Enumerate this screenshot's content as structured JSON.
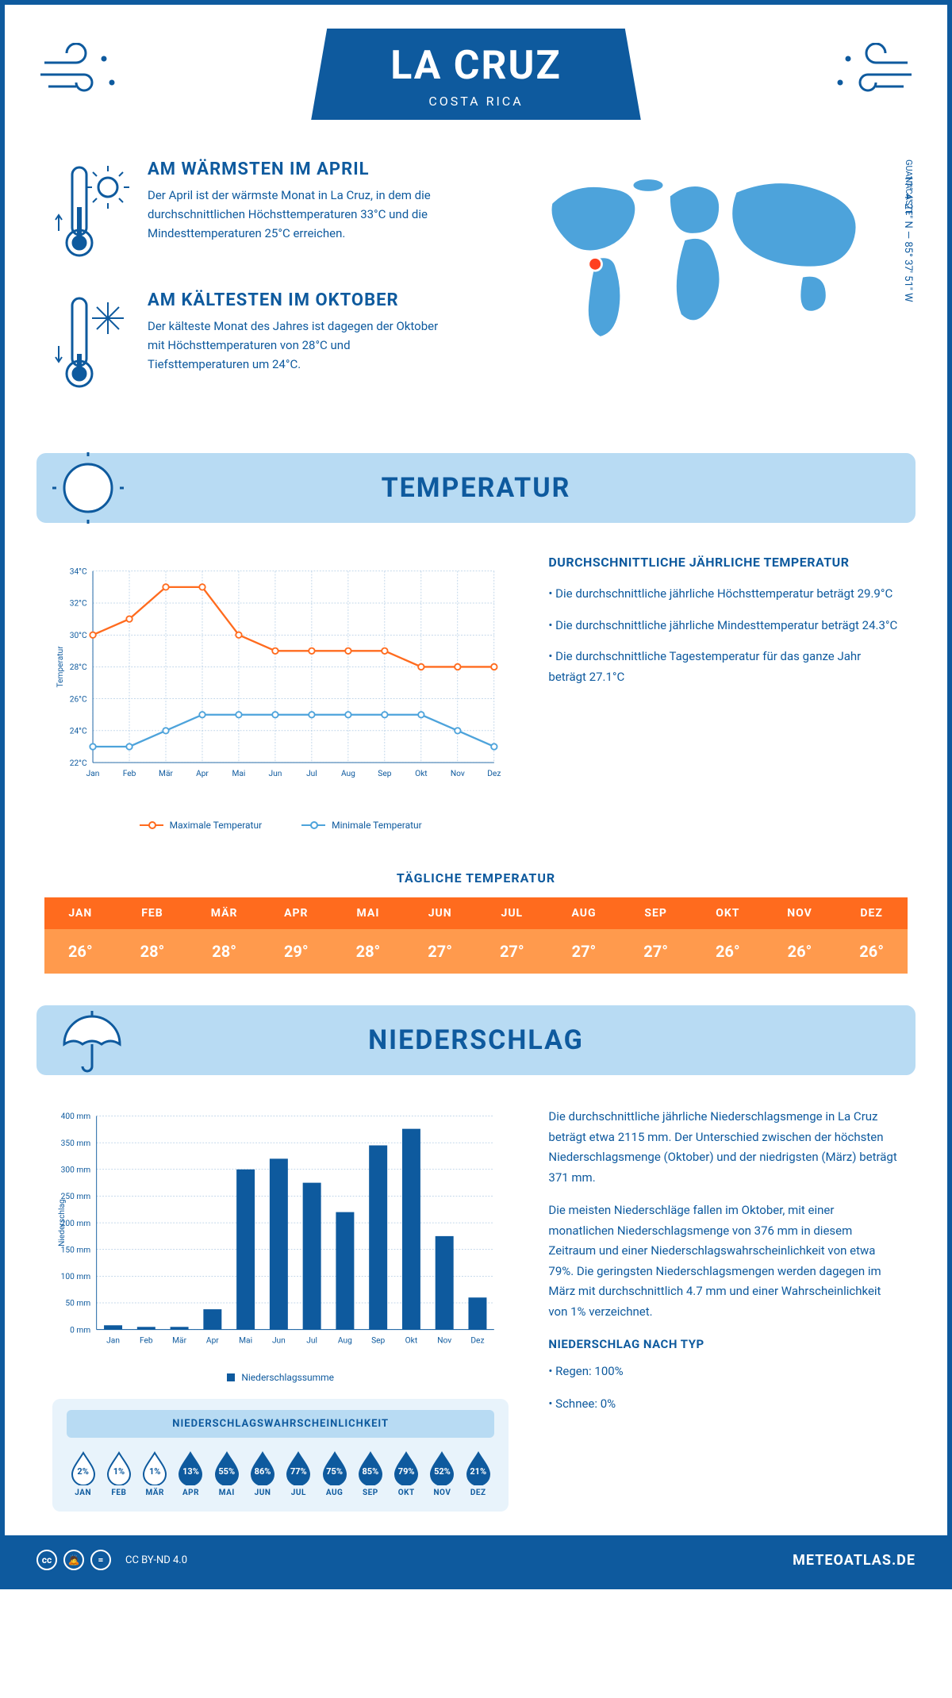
{
  "header": {
    "title": "LA CRUZ",
    "subtitle": "COSTA RICA"
  },
  "coords": "11° 4' 21\" N — 85° 37' 51\" W",
  "region": "GUANACASTE",
  "facts": {
    "hot": {
      "title": "AM WÄRMSTEN IM APRIL",
      "text": "Der April ist der wärmste Monat in La Cruz, in dem die durchschnittlichen Höchsttemperaturen 33°C und die Mindesttemperaturen 25°C erreichen."
    },
    "cold": {
      "title": "AM KÄLTESTEN IM OKTOBER",
      "text": "Der kälteste Monat des Jahres ist dagegen der Oktober mit Höchsttemperaturen von 28°C und Tiefsttemperaturen um 24°C."
    }
  },
  "sections": {
    "temp": "TEMPERATUR",
    "precip": "NIEDERSCHLAG"
  },
  "months": [
    "Jan",
    "Feb",
    "Mär",
    "Apr",
    "Mai",
    "Jun",
    "Jul",
    "Aug",
    "Sep",
    "Okt",
    "Nov",
    "Dez"
  ],
  "months_upper": [
    "JAN",
    "FEB",
    "MÄR",
    "APR",
    "MAI",
    "JUN",
    "JUL",
    "AUG",
    "SEP",
    "OKT",
    "NOV",
    "DEZ"
  ],
  "temp_chart": {
    "type": "line",
    "ylim": [
      22,
      34
    ],
    "ytick_step": 2,
    "yticks": [
      "22°C",
      "24°C",
      "26°C",
      "28°C",
      "30°C",
      "32°C",
      "34°C"
    ],
    "ylabel": "Temperatur",
    "max_series": {
      "color": "#ff6b1e",
      "values": [
        30,
        31,
        33,
        33,
        30,
        29,
        29,
        29,
        29,
        28,
        28,
        28
      ],
      "label": "Maximale Temperatur"
    },
    "min_series": {
      "color": "#4da3db",
      "values": [
        23,
        23,
        24,
        25,
        25,
        25,
        25,
        25,
        25,
        25,
        24,
        23
      ],
      "label": "Minimale Temperatur"
    },
    "grid_color": "#7aa8d0",
    "axis_color": "#0e5a9e",
    "background_color": "#ffffff"
  },
  "temp_text": {
    "heading": "DURCHSCHNITTLICHE JÄHRLICHE TEMPERATUR",
    "p1": "• Die durchschnittliche jährliche Höchsttemperatur beträgt 29.9°C",
    "p2": "• Die durchschnittliche jährliche Mindesttemperatur beträgt 24.3°C",
    "p3": "• Die durchschnittliche Tagestemperatur für das ganze Jahr beträgt 27.1°C"
  },
  "daily": {
    "title": "TÄGLICHE TEMPERATUR",
    "values": [
      "26°",
      "28°",
      "28°",
      "29°",
      "28°",
      "27°",
      "27°",
      "27°",
      "27°",
      "26°",
      "26°",
      "26°"
    ],
    "header_bg": "#ff6b1e",
    "value_bg": "#ff9a4d"
  },
  "precip_chart": {
    "type": "bar",
    "ylim": [
      0,
      400
    ],
    "ytick_step": 50,
    "ylabel": "Niederschlag",
    "yticks": [
      "0 mm",
      "50 mm",
      "100 mm",
      "150 mm",
      "200 mm",
      "250 mm",
      "300 mm",
      "350 mm",
      "400 mm"
    ],
    "values": [
      8,
      5,
      5,
      38,
      300,
      320,
      275,
      220,
      345,
      376,
      175,
      60
    ],
    "bar_color": "#0e5a9e",
    "legend": "Niederschlagssumme",
    "grid_color": "#7aa8d0",
    "axis_color": "#0e5a9e"
  },
  "precip_text": {
    "p1": "Die durchschnittliche jährliche Niederschlagsmenge in La Cruz beträgt etwa 2115 mm. Der Unterschied zwischen der höchsten Niederschlagsmenge (Oktober) und der niedrigsten (März) beträgt 371 mm.",
    "p2": "Die meisten Niederschläge fallen im Oktober, mit einer monatlichen Niederschlagsmenge von 376 mm in diesem Zeitraum und einer Niederschlagswahrscheinlichkeit von etwa 79%. Die geringsten Niederschlagsmengen werden dagegen im März mit durchschnittlich 4.7 mm und einer Wahrscheinlichkeit von 1% verzeichnet.",
    "type_heading": "NIEDERSCHLAG NACH TYP",
    "type1": "• Regen: 100%",
    "type2": "• Schnee: 0%"
  },
  "prob": {
    "title": "NIEDERSCHLAGSWAHRSCHEINLICHKEIT",
    "values": [
      2,
      1,
      1,
      13,
      55,
      86,
      77,
      75,
      85,
      79,
      52,
      21
    ],
    "threshold": 10,
    "fill_color": "#0e5a9e",
    "outline_color": "#0e5a9e"
  },
  "footer": {
    "license": "CC BY-ND 4.0",
    "site": "METEOATLAS.DE"
  },
  "colors": {
    "primary": "#0e5a9e",
    "light_blue": "#b8dbf3",
    "pale_blue": "#e8f3fb",
    "orange": "#ff6b1e",
    "light_orange": "#ff9a4d",
    "mid_blue": "#4da3db",
    "marker_red": "#ff4020"
  }
}
